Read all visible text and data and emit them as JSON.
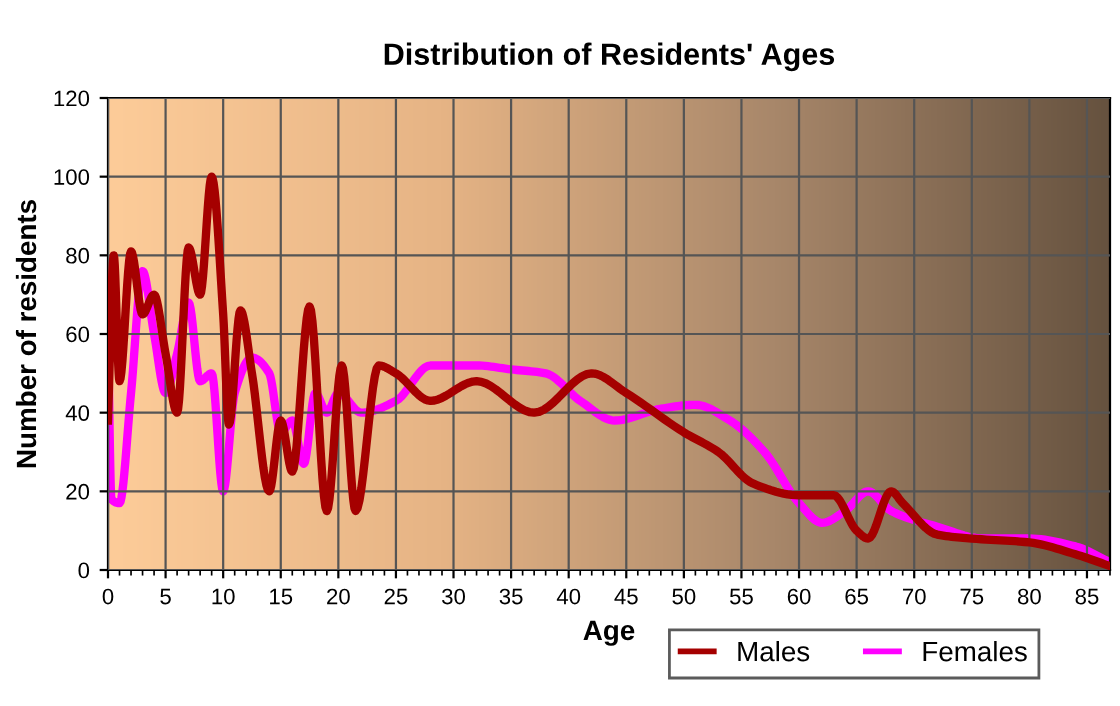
{
  "chart_data": {
    "type": "line",
    "title": "Distribution of Residents' Ages",
    "xlabel": "Age",
    "ylabel": "Number of residents",
    "xlim": [
      0,
      87
    ],
    "xticks": [
      0,
      5,
      10,
      15,
      20,
      25,
      30,
      35,
      40,
      45,
      50,
      55,
      60,
      65,
      70,
      75,
      80,
      85
    ],
    "ylim": [
      0,
      120
    ],
    "yticks": [
      0,
      20,
      40,
      60,
      80,
      100,
      120
    ],
    "grid": true,
    "legend": "bottom right",
    "marker": "none",
    "line_style": "solid",
    "series": [
      {
        "name": "Males",
        "color": "#a50000",
        "x": [
          0,
          0.5,
          1,
          2,
          3,
          4,
          5,
          6,
          7,
          8,
          9,
          10,
          10.5,
          11.5,
          12.5,
          14,
          15,
          16,
          17.5,
          19,
          20.3,
          21.5,
          23.5,
          25,
          28,
          32,
          37,
          42,
          45,
          50,
          53,
          56,
          60,
          63,
          65,
          66,
          68,
          69,
          72,
          75,
          80,
          84,
          87
        ],
        "values": [
          38,
          80,
          48,
          81,
          65,
          70,
          55,
          40,
          82,
          70,
          100,
          65,
          37,
          66,
          50,
          20,
          38,
          25,
          67,
          15,
          52,
          15,
          52,
          50,
          43,
          48,
          40,
          50,
          45,
          35,
          30,
          22,
          19,
          19,
          10,
          8,
          20,
          17,
          9,
          8,
          7,
          4,
          1
        ]
      },
      {
        "name": "Females",
        "color": "#ff00ff",
        "x": [
          0,
          0.3,
          1,
          2,
          3,
          4,
          5,
          6,
          7,
          8,
          9,
          10,
          11,
          12.5,
          14,
          15,
          16,
          17,
          18,
          19,
          20,
          22,
          25,
          28,
          32,
          35,
          38,
          41,
          44,
          48,
          51,
          54,
          57,
          60,
          62,
          64,
          66,
          68,
          72,
          76,
          80,
          84,
          87
        ],
        "values": [
          60,
          18,
          17,
          45,
          76,
          60,
          45,
          55,
          68,
          48,
          50,
          20,
          45,
          54,
          50,
          35,
          38,
          27,
          45,
          40,
          45,
          40,
          43,
          52,
          52,
          51,
          50,
          43,
          38,
          41,
          42,
          38,
          30,
          17,
          12,
          15,
          20,
          15,
          11,
          8,
          8,
          6,
          2
        ]
      }
    ]
  }
}
